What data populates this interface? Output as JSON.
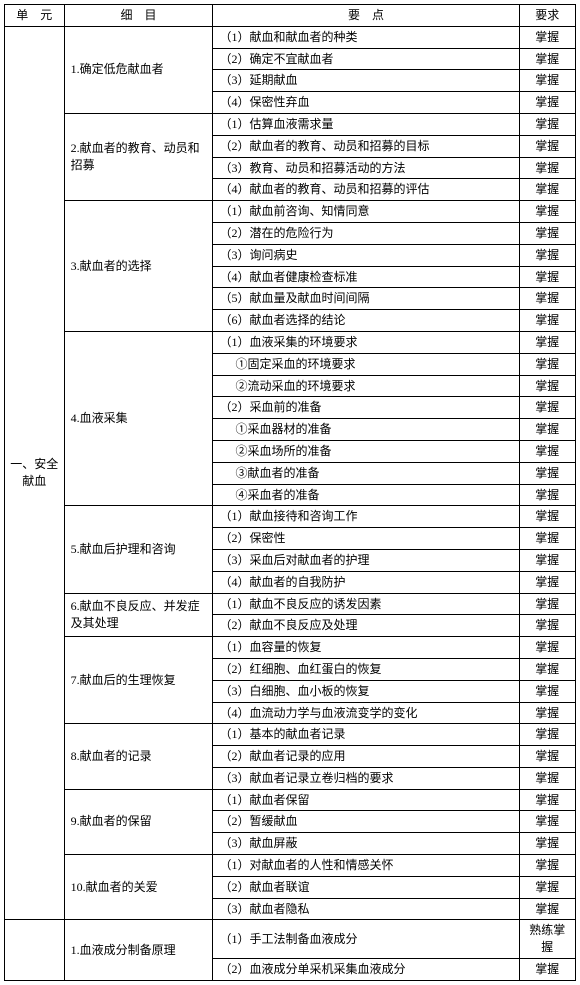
{
  "headers": {
    "unit": "单　元",
    "detail": "细　目",
    "point": "要　点",
    "req": "要求"
  },
  "unit": "一、安全献血",
  "rows": [
    {
      "detail": "1.确定低危献血者",
      "dspan": 4,
      "point": "（1）献血和献血者的种类",
      "req": "掌握"
    },
    {
      "point": "（2）确定不宜献血者",
      "req": "掌握"
    },
    {
      "point": "（3）延期献血",
      "req": "掌握"
    },
    {
      "point": "（4）保密性弃血",
      "req": "掌握"
    },
    {
      "detail": "2.献血者的教育、动员和招募",
      "dspan": 4,
      "point": "（1）估算血液需求量",
      "req": "掌握"
    },
    {
      "point": "（2）献血者的教育、动员和招募的目标",
      "req": "掌握"
    },
    {
      "point": "（3）教育、动员和招募活动的方法",
      "req": "掌握"
    },
    {
      "point": "（4）献血者的教育、动员和招募的评估",
      "req": "掌握"
    },
    {
      "detail": "3.献血者的选择",
      "dspan": 6,
      "point": "（1）献血前咨询、知情同意",
      "req": "掌握"
    },
    {
      "point": "（2）潜在的危险行为",
      "req": "掌握"
    },
    {
      "point": "（3）询问病史",
      "req": "掌握"
    },
    {
      "point": "（4）献血者健康检查标准",
      "req": "掌握"
    },
    {
      "point": "（5）献血量及献血时间间隔",
      "req": "掌握"
    },
    {
      "point": "（6）献血者选择的结论",
      "req": "掌握"
    },
    {
      "detail": "4.血液采集",
      "dspan": 8,
      "point": "（1）血液采集的环境要求",
      "req": "掌握"
    },
    {
      "sub": true,
      "point": "①固定采血的环境要求",
      "req": "掌握"
    },
    {
      "sub": true,
      "point": "②流动采血的环境要求",
      "req": "掌握"
    },
    {
      "point": "（2）采血前的准备",
      "req": "掌握"
    },
    {
      "sub": true,
      "point": "①采血器材的准备",
      "req": "掌握"
    },
    {
      "sub": true,
      "point": "②采血场所的准备",
      "req": "掌握"
    },
    {
      "sub": true,
      "point": "③献血者的准备",
      "req": "掌握"
    },
    {
      "sub": true,
      "point": "④采血者的准备",
      "req": "掌握"
    },
    {
      "detail": "5.献血后护理和咨询",
      "dspan": 4,
      "point": "（1）献血接待和咨询工作",
      "req": "掌握"
    },
    {
      "point": "（2）保密性",
      "req": "掌握"
    },
    {
      "point": "（3）采血后对献血者的护理",
      "req": "掌握"
    },
    {
      "point": "（4）献血者的自我防护",
      "req": "掌握"
    },
    {
      "detail": "6.献血不良反应、并发症及其处理",
      "dspan": 2,
      "point": "（1）献血不良反应的诱发因素",
      "req": "掌握"
    },
    {
      "point": "（2）献血不良反应及处理",
      "req": "掌握"
    },
    {
      "detail": "7.献血后的生理恢复",
      "dspan": 4,
      "point": "（1）血容量的恢复",
      "req": "掌握"
    },
    {
      "point": "（2）红细胞、血红蛋白的恢复",
      "req": "掌握"
    },
    {
      "point": "（3）白细胞、血小板的恢复",
      "req": "掌握"
    },
    {
      "point": "（4）血流动力学与血液流变学的变化",
      "req": "掌握"
    },
    {
      "detail": "8.献血者的记录",
      "dspan": 3,
      "point": "（1）基本的献血者记录",
      "req": "掌握"
    },
    {
      "point": "（2）献血者记录的应用",
      "req": "掌握"
    },
    {
      "point": "（3）献血者记录立卷归档的要求",
      "req": "掌握"
    },
    {
      "detail": "9.献血者的保留",
      "dspan": 3,
      "point": "（1）献血者保留",
      "req": "掌握"
    },
    {
      "point": "（2）暂缓献血",
      "req": "掌握"
    },
    {
      "point": "（3）献血屏蔽",
      "req": "掌握"
    },
    {
      "detail": "10.献血者的关爱",
      "dspan": 3,
      "point": "（1）对献血者的人性和情感关怀",
      "req": "掌握"
    },
    {
      "point": "（2）献血者联谊",
      "req": "掌握"
    },
    {
      "point": "（3）献血者隐私",
      "req": "掌握"
    },
    {
      "unitcell": true,
      "detail": "1.血液成分制备原理",
      "dspan": 2,
      "point": "（1）手工法制备血液成分",
      "req": "熟练掌握"
    },
    {
      "point": "（2）血液成分单采机采集血液成分",
      "req": "掌握"
    }
  ]
}
